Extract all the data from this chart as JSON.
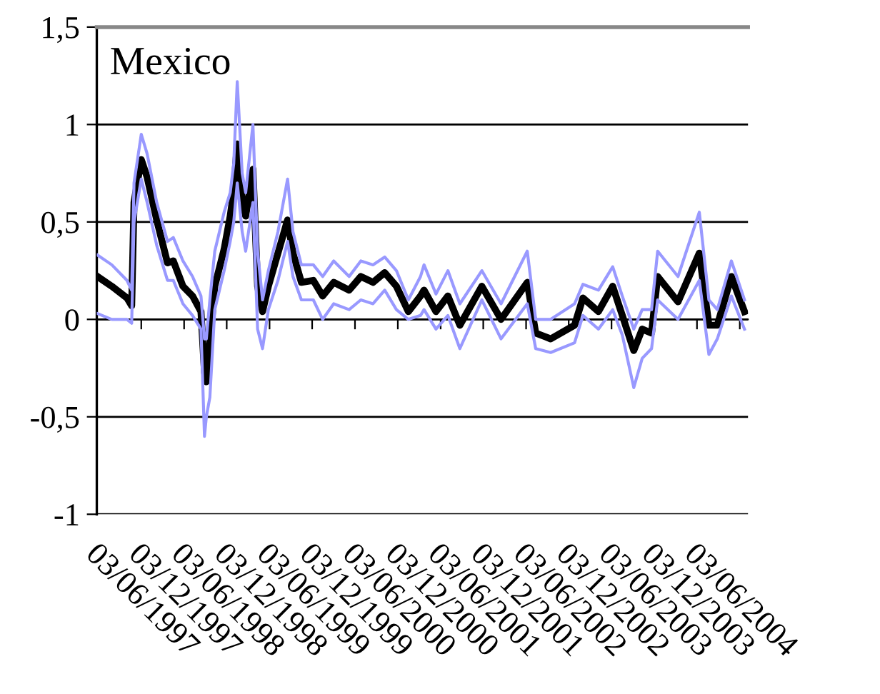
{
  "chart_data": {
    "type": "line",
    "title": "Mexico",
    "x": [
      "1996-11-28",
      "1997-01-28",
      "1997-04-03",
      "1997-04-23",
      "1997-05-03",
      "1997-06-03",
      "1997-06-28",
      "1997-08-08",
      "1997-09-23",
      "1997-10-18",
      "1997-11-28",
      "1998-01-08",
      "1998-02-13",
      "1998-02-28",
      "1998-03-08",
      "1998-03-23",
      "1998-04-13",
      "1998-05-23",
      "1998-06-18",
      "1998-07-03",
      "1998-07-18",
      "1998-08-08",
      "1998-08-23",
      "1998-09-23",
      "1998-10-13",
      "1998-11-03",
      "1998-11-28",
      "1999-01-08",
      "1999-02-18",
      "1999-03-13",
      "1999-04-18",
      "1999-06-08",
      "1999-07-18",
      "1999-09-03",
      "1999-11-08",
      "1999-12-28",
      "2000-02-18",
      "2000-04-08",
      "2000-05-28",
      "2000-07-18",
      "2000-09-08",
      "2000-09-23",
      "2000-11-13",
      "2001-01-03",
      "2001-02-23",
      "2001-05-28",
      "2001-08-18",
      "2001-12-08",
      "2002-01-13",
      "2002-03-18",
      "2002-06-28",
      "2002-08-03",
      "2002-10-08",
      "2002-12-08",
      "2003-01-18",
      "2003-03-08",
      "2003-04-13",
      "2003-05-23",
      "2003-06-18",
      "2003-09-13",
      "2003-12-13",
      "2004-01-23",
      "2004-02-28",
      "2004-04-28",
      "2004-06-23"
    ],
    "series": [
      {
        "color": "#9999ff",
        "values": [
          0.33,
          0.28,
          0.2,
          0.15,
          0.7,
          0.95,
          0.85,
          0.6,
          0.4,
          0.42,
          0.3,
          0.22,
          0.12,
          -0.1,
          -0.1,
          0.1,
          0.35,
          0.55,
          0.65,
          0.8,
          1.22,
          0.75,
          0.65,
          1.0,
          0.35,
          0.1,
          0.25,
          0.45,
          0.72,
          0.45,
          0.28,
          0.28,
          0.22,
          0.3,
          0.22,
          0.3,
          0.28,
          0.32,
          0.25,
          0.1,
          0.22,
          0.28,
          0.13,
          0.25,
          0.08,
          0.25,
          0.08,
          0.35,
          0.0,
          0.0,
          0.08,
          0.18,
          0.15,
          0.27,
          0.12,
          -0.05,
          0.05,
          0.05,
          0.35,
          0.22,
          0.55,
          0.1,
          0.05,
          0.3,
          0.1
        ]
      },
      {
        "color": "#9999ff",
        "values": [
          0.03,
          0.0,
          0.0,
          -0.02,
          0.5,
          0.72,
          0.6,
          0.38,
          0.2,
          0.2,
          0.08,
          0.02,
          -0.05,
          -0.6,
          -0.5,
          -0.4,
          0.05,
          0.25,
          0.4,
          0.5,
          0.7,
          0.45,
          0.35,
          0.6,
          -0.05,
          -0.15,
          0.05,
          0.2,
          0.4,
          0.22,
          0.1,
          0.1,
          0.0,
          0.08,
          0.05,
          0.1,
          0.08,
          0.15,
          0.05,
          0.0,
          0.02,
          0.05,
          -0.05,
          0.02,
          -0.15,
          0.1,
          -0.1,
          0.08,
          -0.15,
          -0.17,
          -0.12,
          0.02,
          -0.05,
          0.05,
          -0.08,
          -0.35,
          -0.2,
          -0.15,
          0.1,
          0.0,
          0.2,
          -0.18,
          -0.1,
          0.12,
          -0.05
        ]
      },
      {
        "color": "#000000",
        "values": [
          0.22,
          0.17,
          0.11,
          0.07,
          0.6,
          0.82,
          0.73,
          0.51,
          0.29,
          0.3,
          0.17,
          0.12,
          0.04,
          -0.27,
          -0.32,
          -0.12,
          0.17,
          0.36,
          0.53,
          0.66,
          0.9,
          0.61,
          0.53,
          0.77,
          0.17,
          0.04,
          0.17,
          0.34,
          0.51,
          0.34,
          0.19,
          0.2,
          0.12,
          0.19,
          0.15,
          0.22,
          0.19,
          0.24,
          0.17,
          0.04,
          0.12,
          0.15,
          0.04,
          0.12,
          -0.03,
          0.17,
          0.0,
          0.19,
          -0.07,
          -0.1,
          -0.03,
          0.11,
          0.04,
          0.17,
          0.02,
          -0.16,
          -0.05,
          -0.07,
          0.22,
          0.09,
          0.34,
          -0.03,
          -0.03,
          0.22,
          0.04
        ]
      }
    ],
    "xlim": [
      "1996-11-25",
      "2004-07-08"
    ],
    "xticks": [
      {
        "value": "1997-06-03",
        "label": "03/06/1997"
      },
      {
        "value": "1997-12-03",
        "label": "03/12/1997"
      },
      {
        "value": "1998-06-03",
        "label": "03/06/1998"
      },
      {
        "value": "1998-12-03",
        "label": "03/12/1998"
      },
      {
        "value": "1999-06-03",
        "label": "03/06/1999"
      },
      {
        "value": "1999-12-03",
        "label": "03/12/1999"
      },
      {
        "value": "2000-06-03",
        "label": "03/06/2000"
      },
      {
        "value": "2000-12-03",
        "label": "03/12/2000"
      },
      {
        "value": "2001-06-03",
        "label": "03/06/2001"
      },
      {
        "value": "2001-12-03",
        "label": "03/12/2001"
      },
      {
        "value": "2002-06-03",
        "label": "03/06/2002"
      },
      {
        "value": "2002-12-03",
        "label": "03/12/2002"
      },
      {
        "value": "2003-06-03",
        "label": "03/06/2003"
      },
      {
        "value": "2003-12-03",
        "label": "03/12/2003"
      },
      {
        "value": "2004-06-03",
        "label": "03/06/2004"
      }
    ],
    "ylim": [
      -1,
      1.5
    ],
    "yticks": [
      {
        "value": -1,
        "label": "-1"
      },
      {
        "value": -0.5,
        "label": "-0,5"
      },
      {
        "value": 0,
        "label": "0"
      },
      {
        "value": 0.5,
        "label": "0,5"
      },
      {
        "value": 1,
        "label": "1"
      },
      {
        "value": 1.5,
        "label": "1,5"
      }
    ],
    "grid": "y",
    "marker": "none",
    "line_style": "solid",
    "legend": false
  }
}
